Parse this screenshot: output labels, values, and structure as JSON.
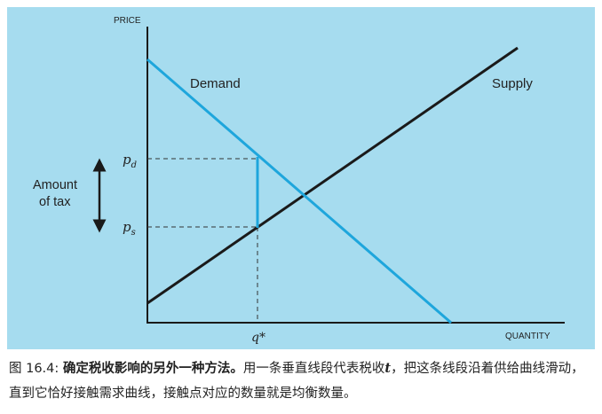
{
  "diagram": {
    "axes": {
      "y_label": "PRICE",
      "x_label": "QUANTITY"
    },
    "curves": {
      "demand_label": "Demand",
      "supply_label": "Supply"
    },
    "price_labels": {
      "pd": {
        "base": "p",
        "sub": "d"
      },
      "ps": {
        "base": "p",
        "sub": "s"
      }
    },
    "quantity_label": "q*",
    "tax_label_line1": "Amount",
    "tax_label_line2": "of tax",
    "colors": {
      "background": "#a6dcef",
      "demand": "#1ea6dc",
      "supply": "#1a1a1a",
      "tax_segment": "#1ea6dc",
      "axis": "#1a1a1a"
    }
  },
  "caption": {
    "fig_num": "图 16.4:",
    "title": "确定税收影响的另外一种方法。",
    "body_before_t": "用一条垂直线段代表税收",
    "tax_var": "t",
    "body_after_t": "，把这条线段沿着供给曲线滑动，直到它恰好接触需求曲线，接触点对应的数量就是均衡数量。"
  }
}
